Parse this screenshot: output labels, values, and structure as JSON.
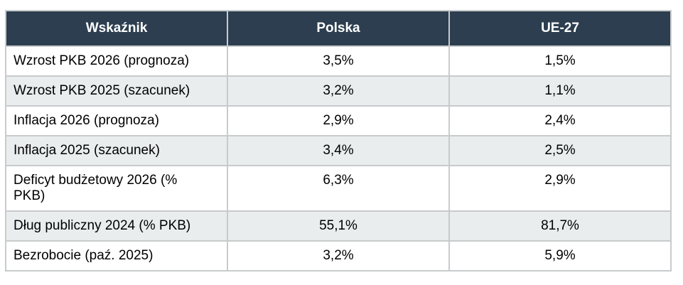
{
  "table": {
    "columns": [
      {
        "label": "Wskaźnik"
      },
      {
        "label": "Polska"
      },
      {
        "label": "UE-27"
      }
    ],
    "rows": [
      {
        "indicator": "Wzrost PKB 2026 (prognoza)",
        "polska": "3,5%",
        "ue27": "1,5%"
      },
      {
        "indicator": "Wzrost PKB 2025 (szacunek)",
        "polska": "3,2%",
        "ue27": "1,1%"
      },
      {
        "indicator": "Inflacja 2026 (prognoza)",
        "polska": "2,9%",
        "ue27": "2,4%"
      },
      {
        "indicator": "Inflacja 2025 (szacunek)",
        "polska": "3,4%",
        "ue27": "2,5%"
      },
      {
        "indicator": "Deficyt budżetowy 2026 (% PKB)",
        "polska": "6,3%",
        "ue27": "2,9%"
      },
      {
        "indicator": "Dług publiczny 2024 (% PKB)",
        "polska": "55,1%",
        "ue27": "81,7%"
      },
      {
        "indicator": "Bezrobocie (paź. 2025)",
        "polska": "3,2%",
        "ue27": "5,9%"
      }
    ],
    "colors": {
      "header_bg": "#2c3e50",
      "header_text": "#ffffff",
      "row_bg": "#ffffff",
      "row_alt_bg": "#e9edee",
      "border": "#c8cbcc",
      "text": "#000000"
    }
  },
  "chart_data": {
    "type": "table",
    "title": "",
    "columns": [
      "Wskaźnik",
      "Polska",
      "UE-27"
    ],
    "rows": [
      [
        "Wzrost PKB 2026 (prognoza)",
        "3,5%",
        "1,5%"
      ],
      [
        "Wzrost PKB 2025 (szacunek)",
        "3,2%",
        "1,1%"
      ],
      [
        "Inflacja 2026 (prognoza)",
        "2,9%",
        "2,4%"
      ],
      [
        "Inflacja 2025 (szacunek)",
        "3,4%",
        "2,5%"
      ],
      [
        "Deficyt budżetowy 2026 (% PKB)",
        "6,3%",
        "2,9%"
      ],
      [
        "Dług publiczny 2024 (% PKB)",
        "55,1%",
        "81,7%"
      ],
      [
        "Bezrobocie (paź. 2025)",
        "3,2%",
        "5,9%"
      ]
    ],
    "layout": {
      "alternating_rows": true,
      "header_style": "dark",
      "values_units": "percent"
    }
  }
}
